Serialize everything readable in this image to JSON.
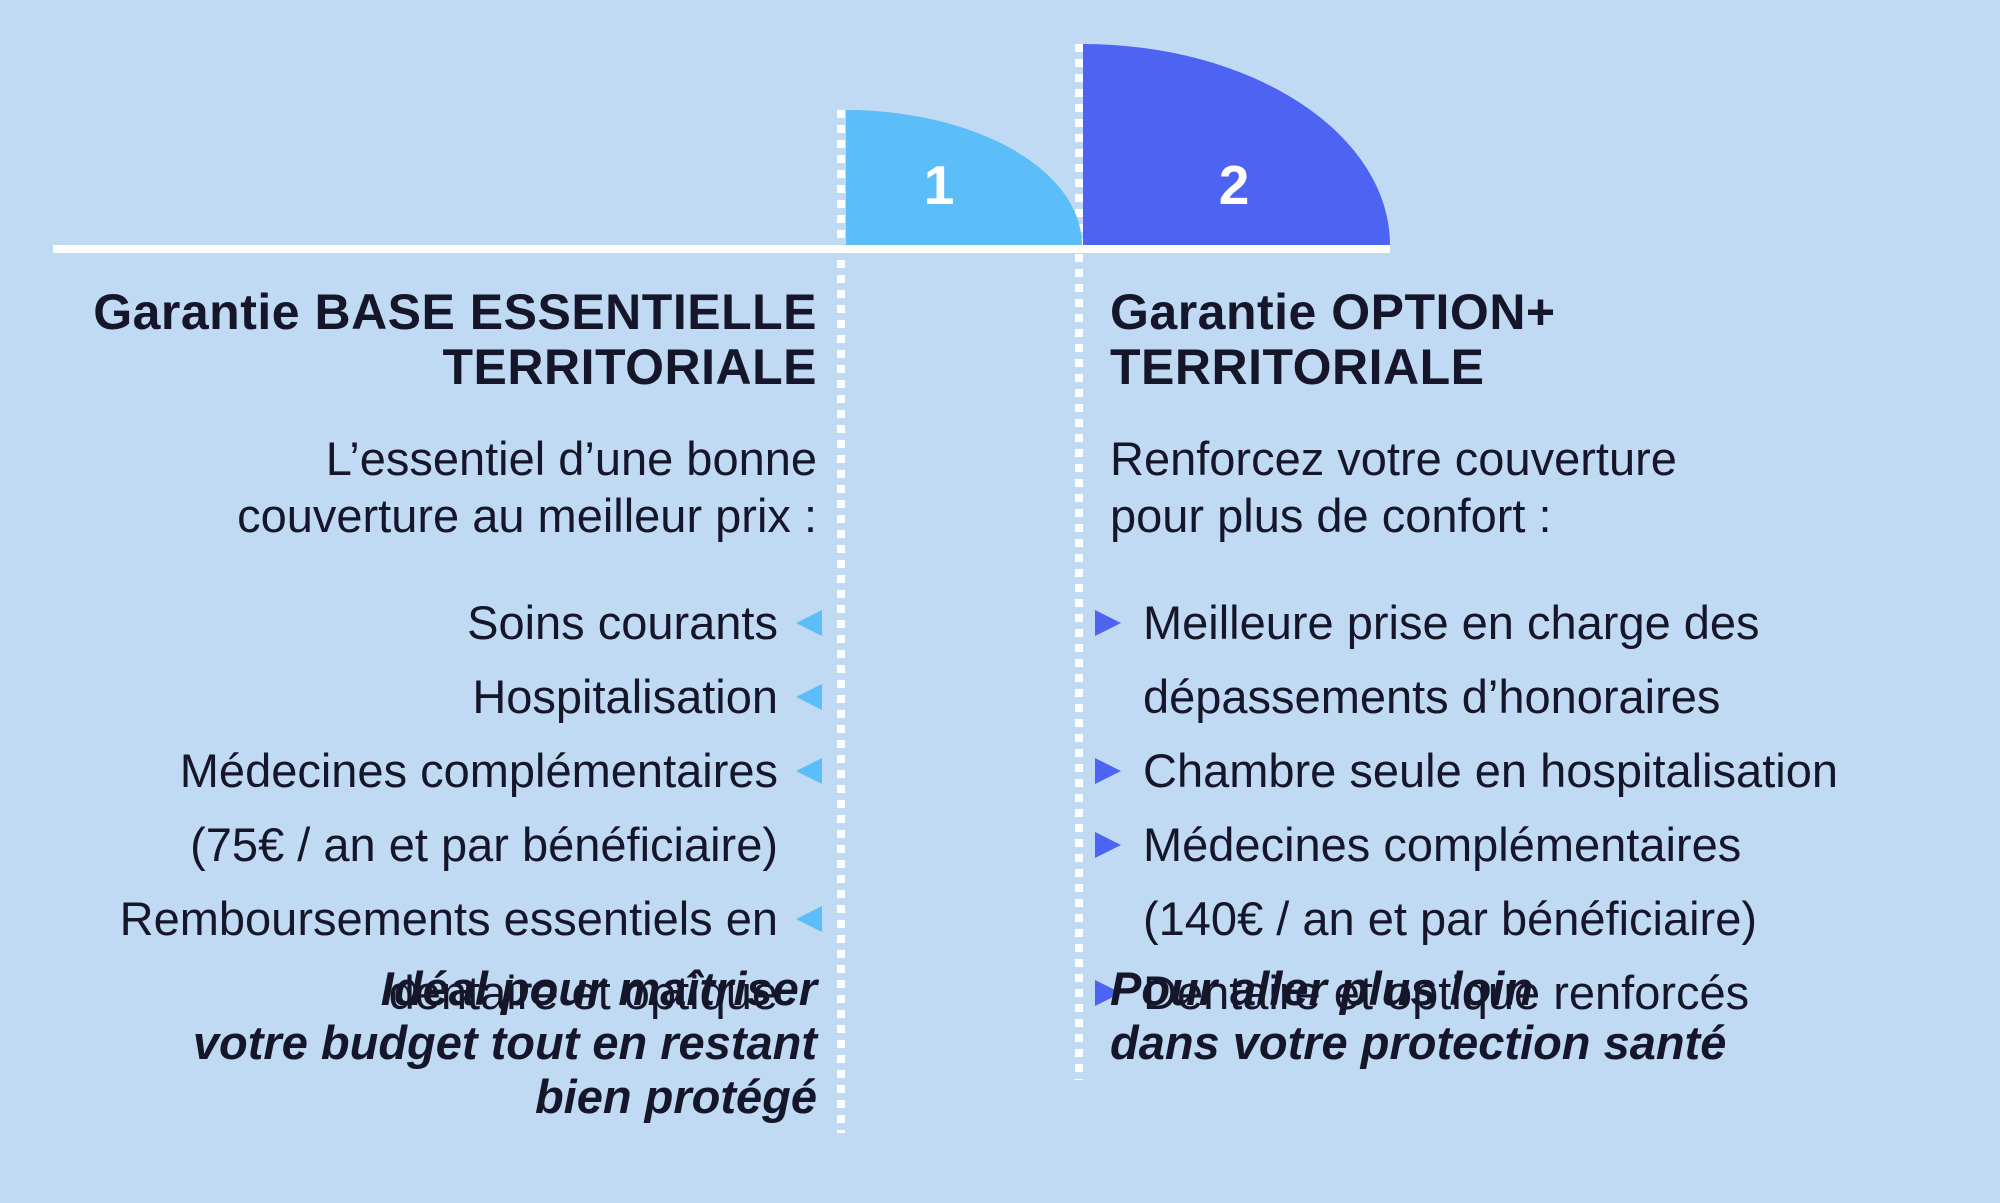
{
  "colors": {
    "background": "#C1DAF3",
    "sky_blue": "#5BBEF9",
    "royal_blue": "#4C64F1",
    "text": "#16162B",
    "rule_and_dots": "#FFFFFF"
  },
  "icons": {
    "left_bullet_marker": "triangle-left",
    "right_bullet_marker": "triangle-right"
  },
  "steps": {
    "step1_number": "1",
    "step2_number": "2"
  },
  "left_column": {
    "title": "Garantie BASE ESSENTIELLE\nTERRITORIALE",
    "lead": "L’essentiel d’une bonne\ncouverture au meilleur prix :",
    "bullets": [
      {
        "text": "Soins courants",
        "marker": "triangle-left"
      },
      {
        "text": "Hospitalisation",
        "marker": "triangle-left"
      },
      {
        "text": "Médecines complémentaires",
        "marker": "triangle-left"
      },
      {
        "text": "(75€ / an et par bénéficiaire)",
        "marker": "none"
      },
      {
        "text": "Remboursements essentiels en",
        "marker": "triangle-left"
      },
      {
        "text": "dentaire et optique",
        "marker": "none"
      }
    ],
    "tagline": "Idéal pour maîtriser\nvotre budget tout en restant\nbien protégé"
  },
  "right_column": {
    "title": "Garantie OPTION+\nTERRITORIALE",
    "lead": "Renforcez votre couverture\npour plus de confort :",
    "bullets": [
      {
        "text": "Meilleure prise en charge des",
        "marker": "triangle-right"
      },
      {
        "text": "dépassements d’honoraires",
        "marker": "none"
      },
      {
        "text": "Chambre seule en hospitalisation",
        "marker": "triangle-right"
      },
      {
        "text": "Médecines complémentaires",
        "marker": "triangle-right"
      },
      {
        "text": "(140€ / an et par bénéficiaire)",
        "marker": "none"
      },
      {
        "text": "Dentaire et optique renforcés",
        "marker": "triangle-right"
      }
    ],
    "tagline": "Pour aller plus loin\ndans votre protection santé"
  }
}
